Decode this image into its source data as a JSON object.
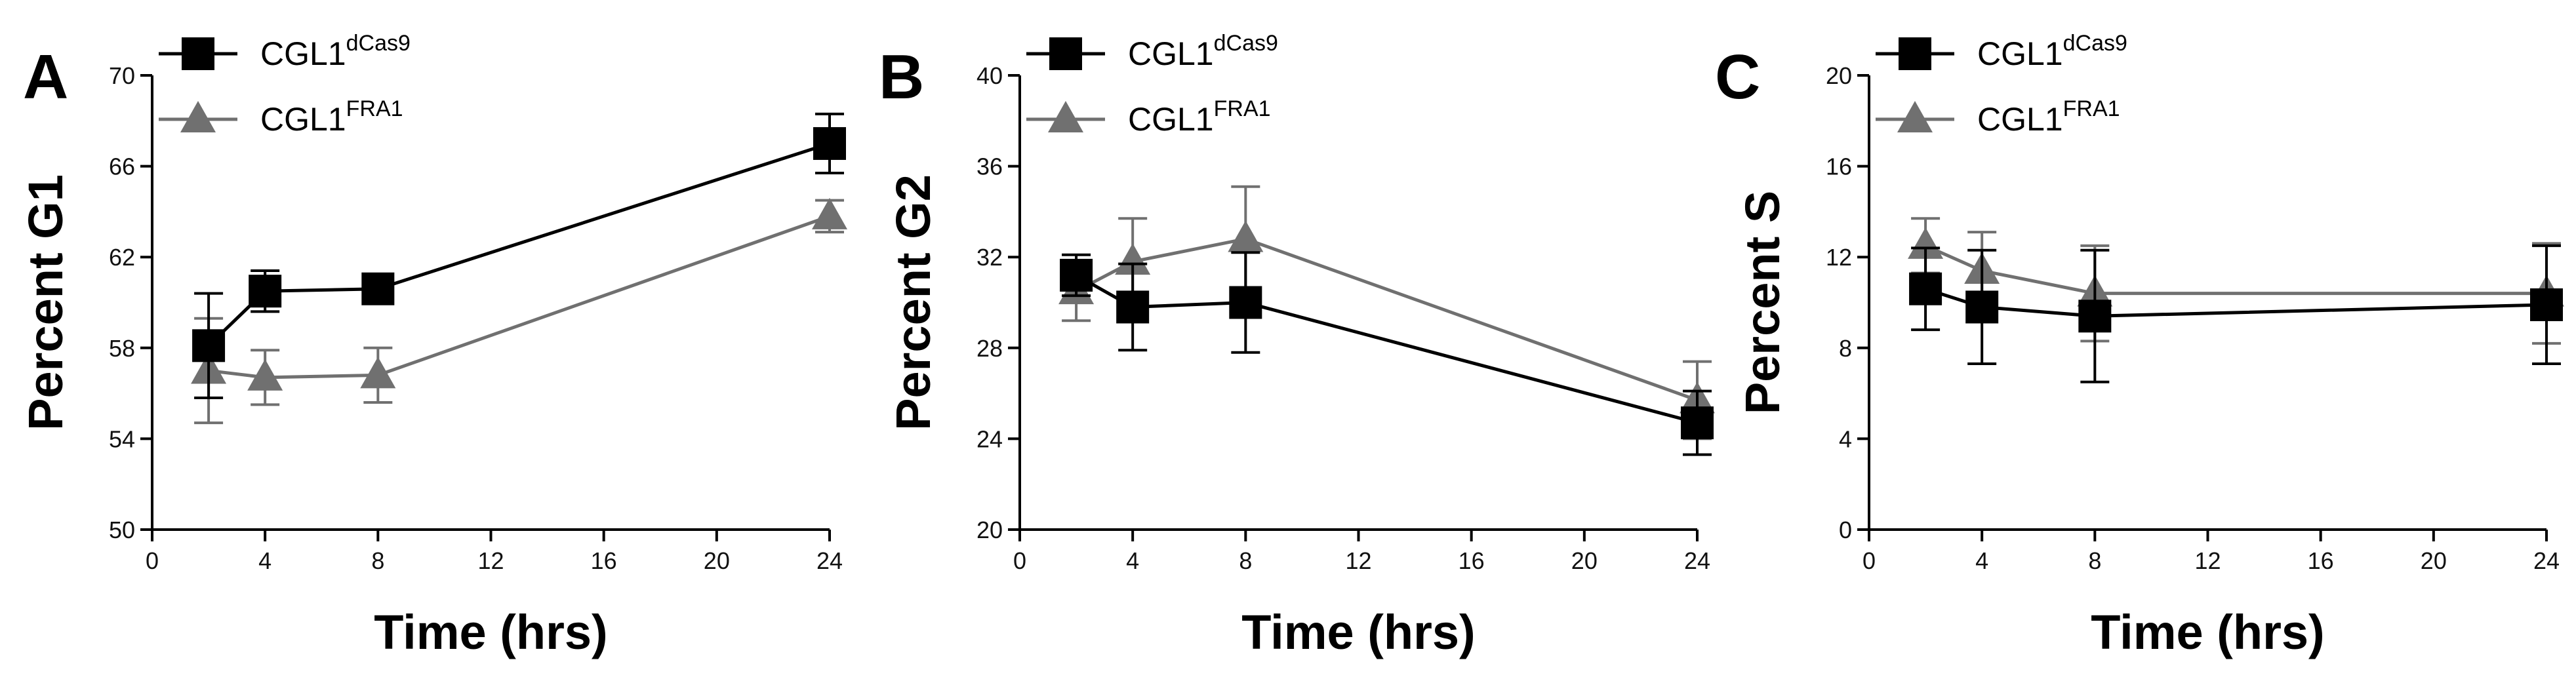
{
  "colors": {
    "series_0": "#000000",
    "series_1": "#707070",
    "axis": "#000000"
  },
  "chart_data": [
    {
      "type": "line",
      "panel": "A",
      "xlabel": "Time (hrs)",
      "ylabel": "Percent G1",
      "xlim": [
        0,
        24
      ],
      "ylim": [
        50,
        70
      ],
      "xticks": [
        0,
        4,
        8,
        12,
        16,
        20,
        24
      ],
      "yticks": [
        50,
        54,
        58,
        62,
        66,
        70
      ],
      "legend_position": "top-left",
      "x": [
        2,
        4,
        8,
        24
      ],
      "series": [
        {
          "name": "CGL1",
          "sup": "dCas9",
          "marker": "square",
          "values": [
            58.1,
            60.5,
            60.6,
            67.0
          ],
          "errors": [
            2.3,
            0.9,
            0.6,
            1.3
          ]
        },
        {
          "name": "CGL1",
          "sup": "FRA1",
          "marker": "triangle",
          "values": [
            57.0,
            56.7,
            56.8,
            63.8
          ],
          "errors": [
            2.3,
            1.2,
            1.2,
            0.7
          ]
        }
      ]
    },
    {
      "type": "line",
      "panel": "B",
      "xlabel": "Time (hrs)",
      "ylabel": "Percent G2",
      "xlim": [
        0,
        24
      ],
      "ylim": [
        20,
        40
      ],
      "xticks": [
        0,
        4,
        8,
        12,
        16,
        20,
        24
      ],
      "yticks": [
        20,
        24,
        28,
        32,
        36,
        40
      ],
      "legend_position": "top-left",
      "x": [
        2,
        4,
        8,
        24
      ],
      "series": [
        {
          "name": "CGL1",
          "sup": "dCas9",
          "marker": "square",
          "values": [
            31.2,
            29.8,
            30.0,
            24.7
          ],
          "errors": [
            0.9,
            1.9,
            2.2,
            1.4
          ]
        },
        {
          "name": "CGL1",
          "sup": "FRA1",
          "marker": "triangle",
          "values": [
            30.5,
            31.8,
            32.8,
            25.7
          ],
          "errors": [
            1.3,
            1.9,
            2.3,
            1.7
          ]
        }
      ]
    },
    {
      "type": "line",
      "panel": "C",
      "xlabel": "Time (hrs)",
      "ylabel": "Percent S",
      "xlim": [
        0,
        24
      ],
      "ylim": [
        0,
        20
      ],
      "xticks": [
        0,
        4,
        8,
        12,
        16,
        20,
        24
      ],
      "yticks": [
        0,
        4,
        8,
        12,
        16,
        20
      ],
      "legend_position": "top-left",
      "x": [
        2,
        4,
        8,
        24
      ],
      "series": [
        {
          "name": "CGL1",
          "sup": "dCas9",
          "marker": "square",
          "values": [
            10.6,
            9.8,
            9.4,
            9.9
          ],
          "errors": [
            1.8,
            2.5,
            2.9,
            2.6
          ]
        },
        {
          "name": "CGL1",
          "sup": "FRA1",
          "marker": "triangle",
          "values": [
            12.5,
            11.4,
            10.4,
            10.4
          ],
          "errors": [
            1.2,
            1.7,
            2.1,
            2.2
          ]
        }
      ]
    }
  ]
}
